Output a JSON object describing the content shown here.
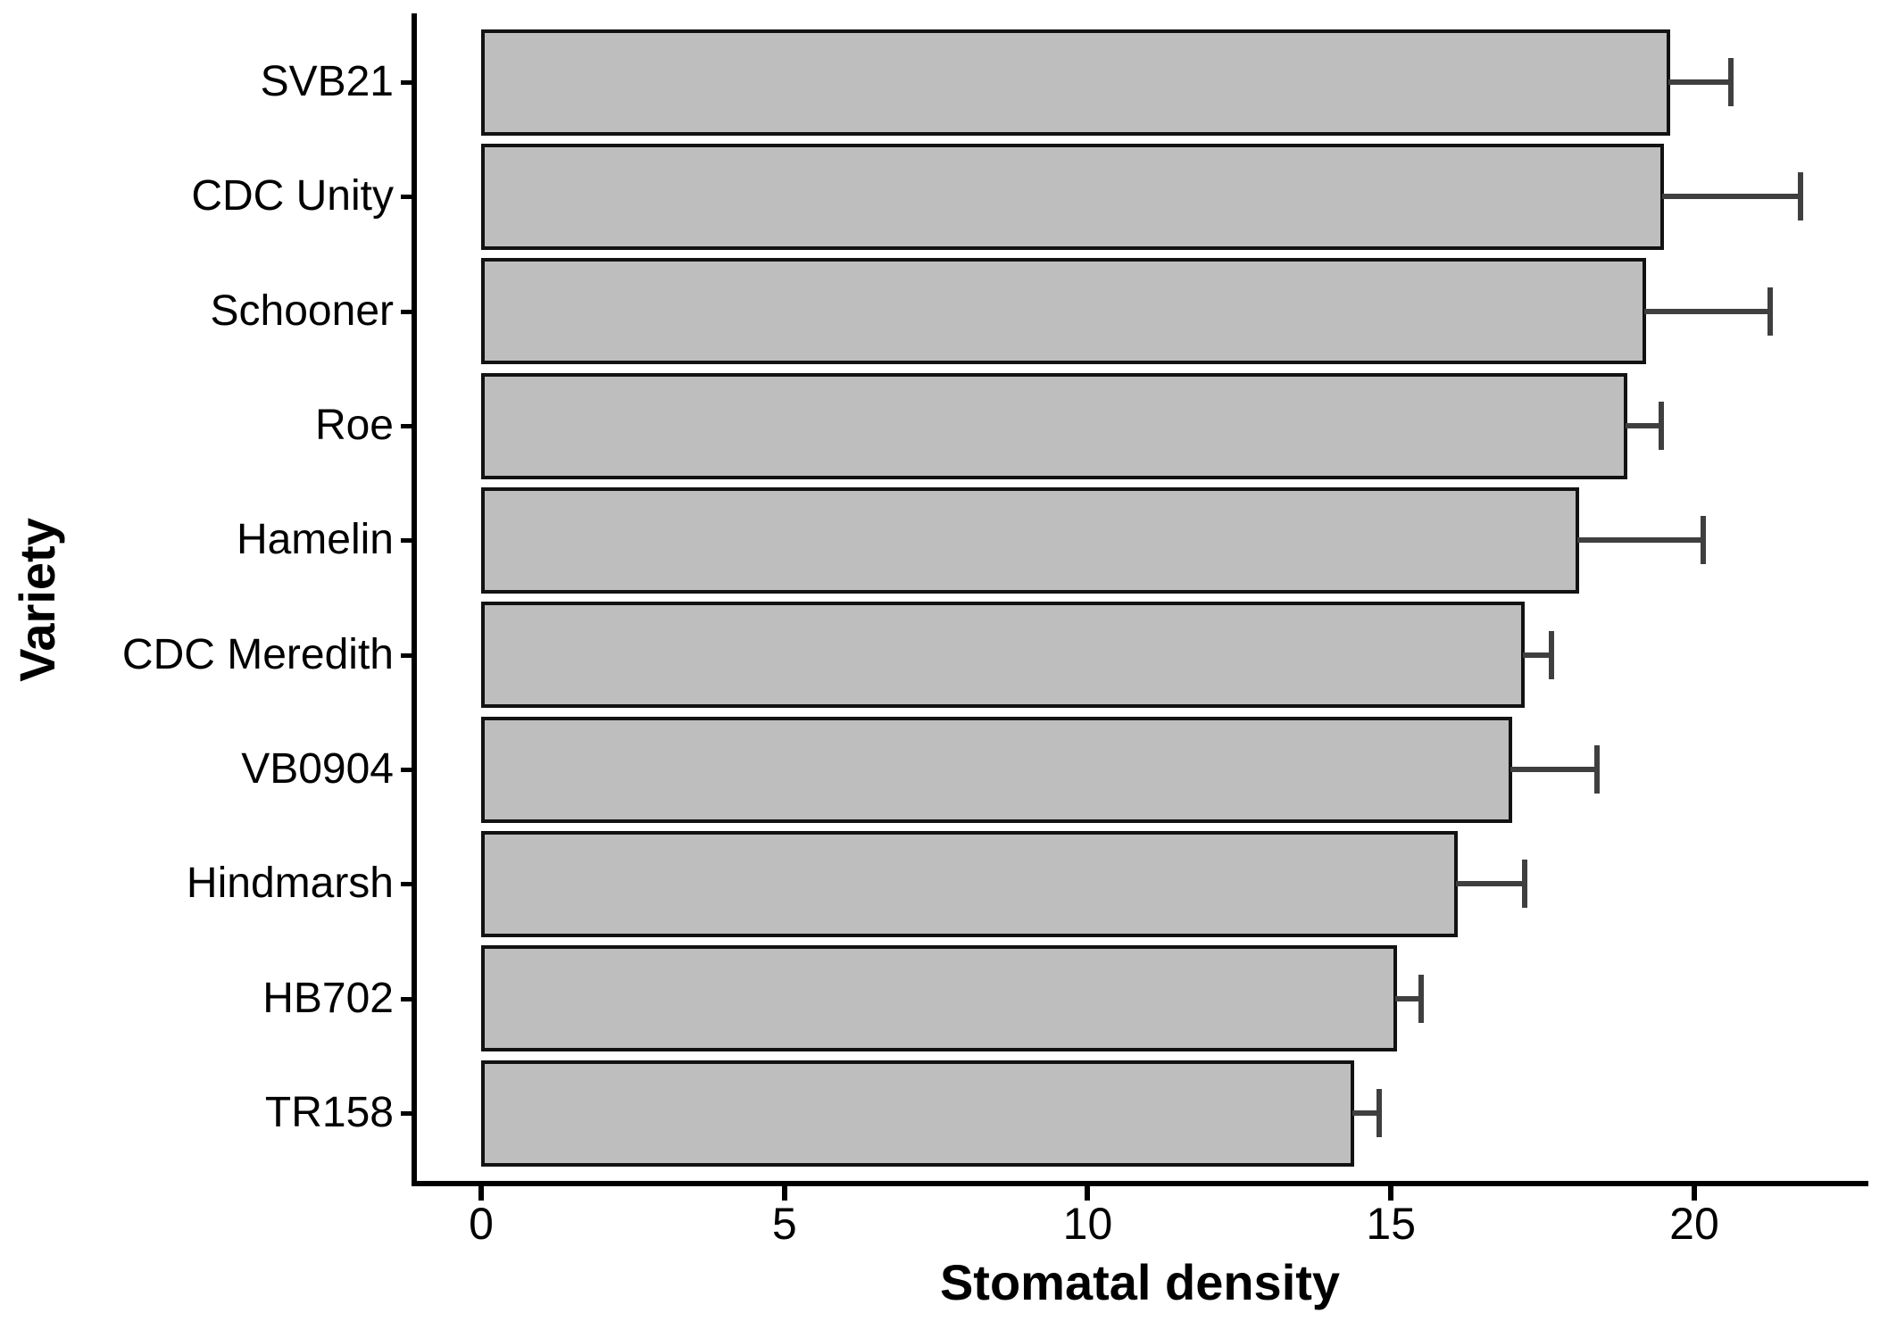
{
  "chart_data": {
    "type": "bar",
    "orientation": "horizontal",
    "title": "",
    "xlabel": "Stomatal density",
    "ylabel": "Variety",
    "categories": [
      "SVB21",
      "CDC Unity",
      "Schooner",
      "Roe",
      "Hamelin",
      "CDC Meredith",
      "VB0904",
      "Hindmarsh",
      "HB702",
      "TR158"
    ],
    "values": [
      19.6,
      19.5,
      19.2,
      18.9,
      18.1,
      17.2,
      17.0,
      16.1,
      15.1,
      14.4
    ],
    "error_upper": [
      1.0,
      2.25,
      2.05,
      0.55,
      2.05,
      0.45,
      1.4,
      1.1,
      0.4,
      0.4
    ],
    "x_ticks": [
      "0",
      "5",
      "10",
      "15",
      "20"
    ],
    "x_tick_values": [
      0,
      5,
      10,
      15,
      20
    ],
    "xlim": [
      0,
      22.87
    ],
    "grid": "off",
    "legend": "none",
    "bar_fill": "#bebebe",
    "bar_border": "#121212",
    "error_color": "#3f3f3f",
    "axis_color": "#000000"
  }
}
